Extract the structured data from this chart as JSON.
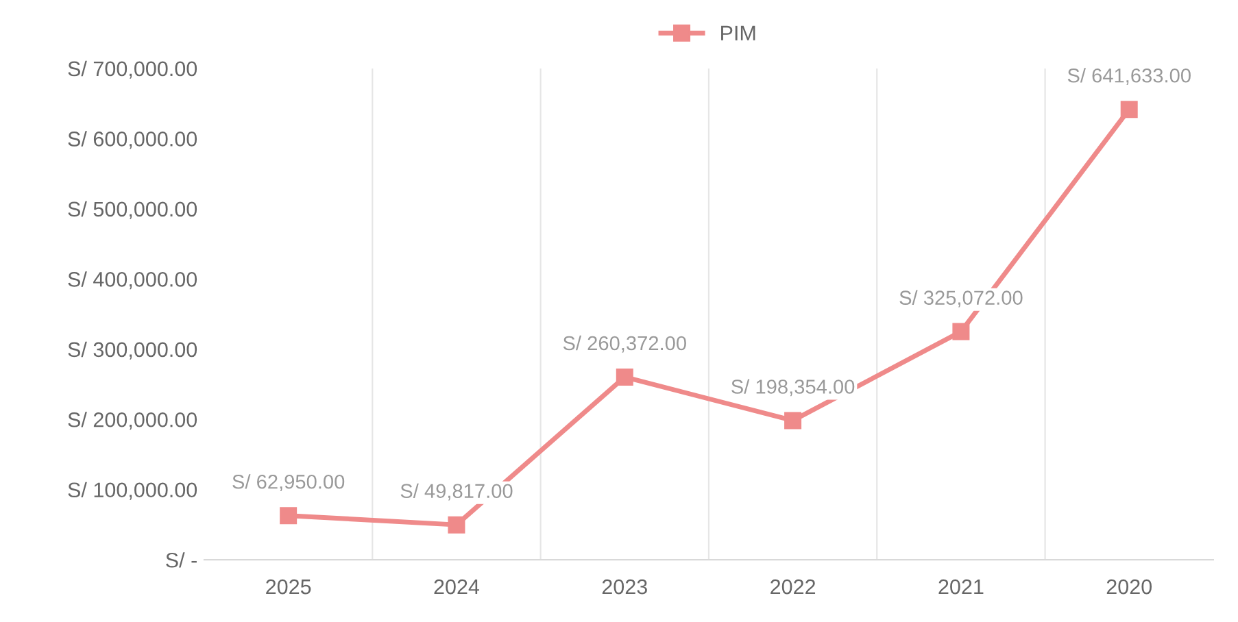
{
  "chart_data": {
    "type": "line",
    "categories": [
      "2025",
      "2024",
      "2023",
      "2022",
      "2021",
      "2020"
    ],
    "series": [
      {
        "name": "PIM",
        "color": "#ef8a8a",
        "values": [
          62950,
          49817,
          260372,
          198354,
          325072,
          641633
        ],
        "value_labels": [
          "S/ 62,950.00",
          "S/ 49,817.00",
          "S/ 260,372.00",
          "S/ 198,354.00",
          "S/ 325,072.00",
          "S/ 641,633.00"
        ]
      }
    ],
    "ylim": [
      0,
      700000
    ],
    "yticks": [
      {
        "value": 0,
        "label": "S/ -"
      },
      {
        "value": 100000,
        "label": "S/ 100,000.00"
      },
      {
        "value": 200000,
        "label": "S/ 200,000.00"
      },
      {
        "value": 300000,
        "label": "S/ 300,000.00"
      },
      {
        "value": 400000,
        "label": "S/ 400,000.00"
      },
      {
        "value": 500000,
        "label": "S/ 500,000.00"
      },
      {
        "value": 600000,
        "label": "S/ 600,000.00"
      },
      {
        "value": 700000,
        "label": "S/ 700,000.00"
      }
    ],
    "grid": "x",
    "legend": "top",
    "marker": "square",
    "line_style": "solid"
  }
}
